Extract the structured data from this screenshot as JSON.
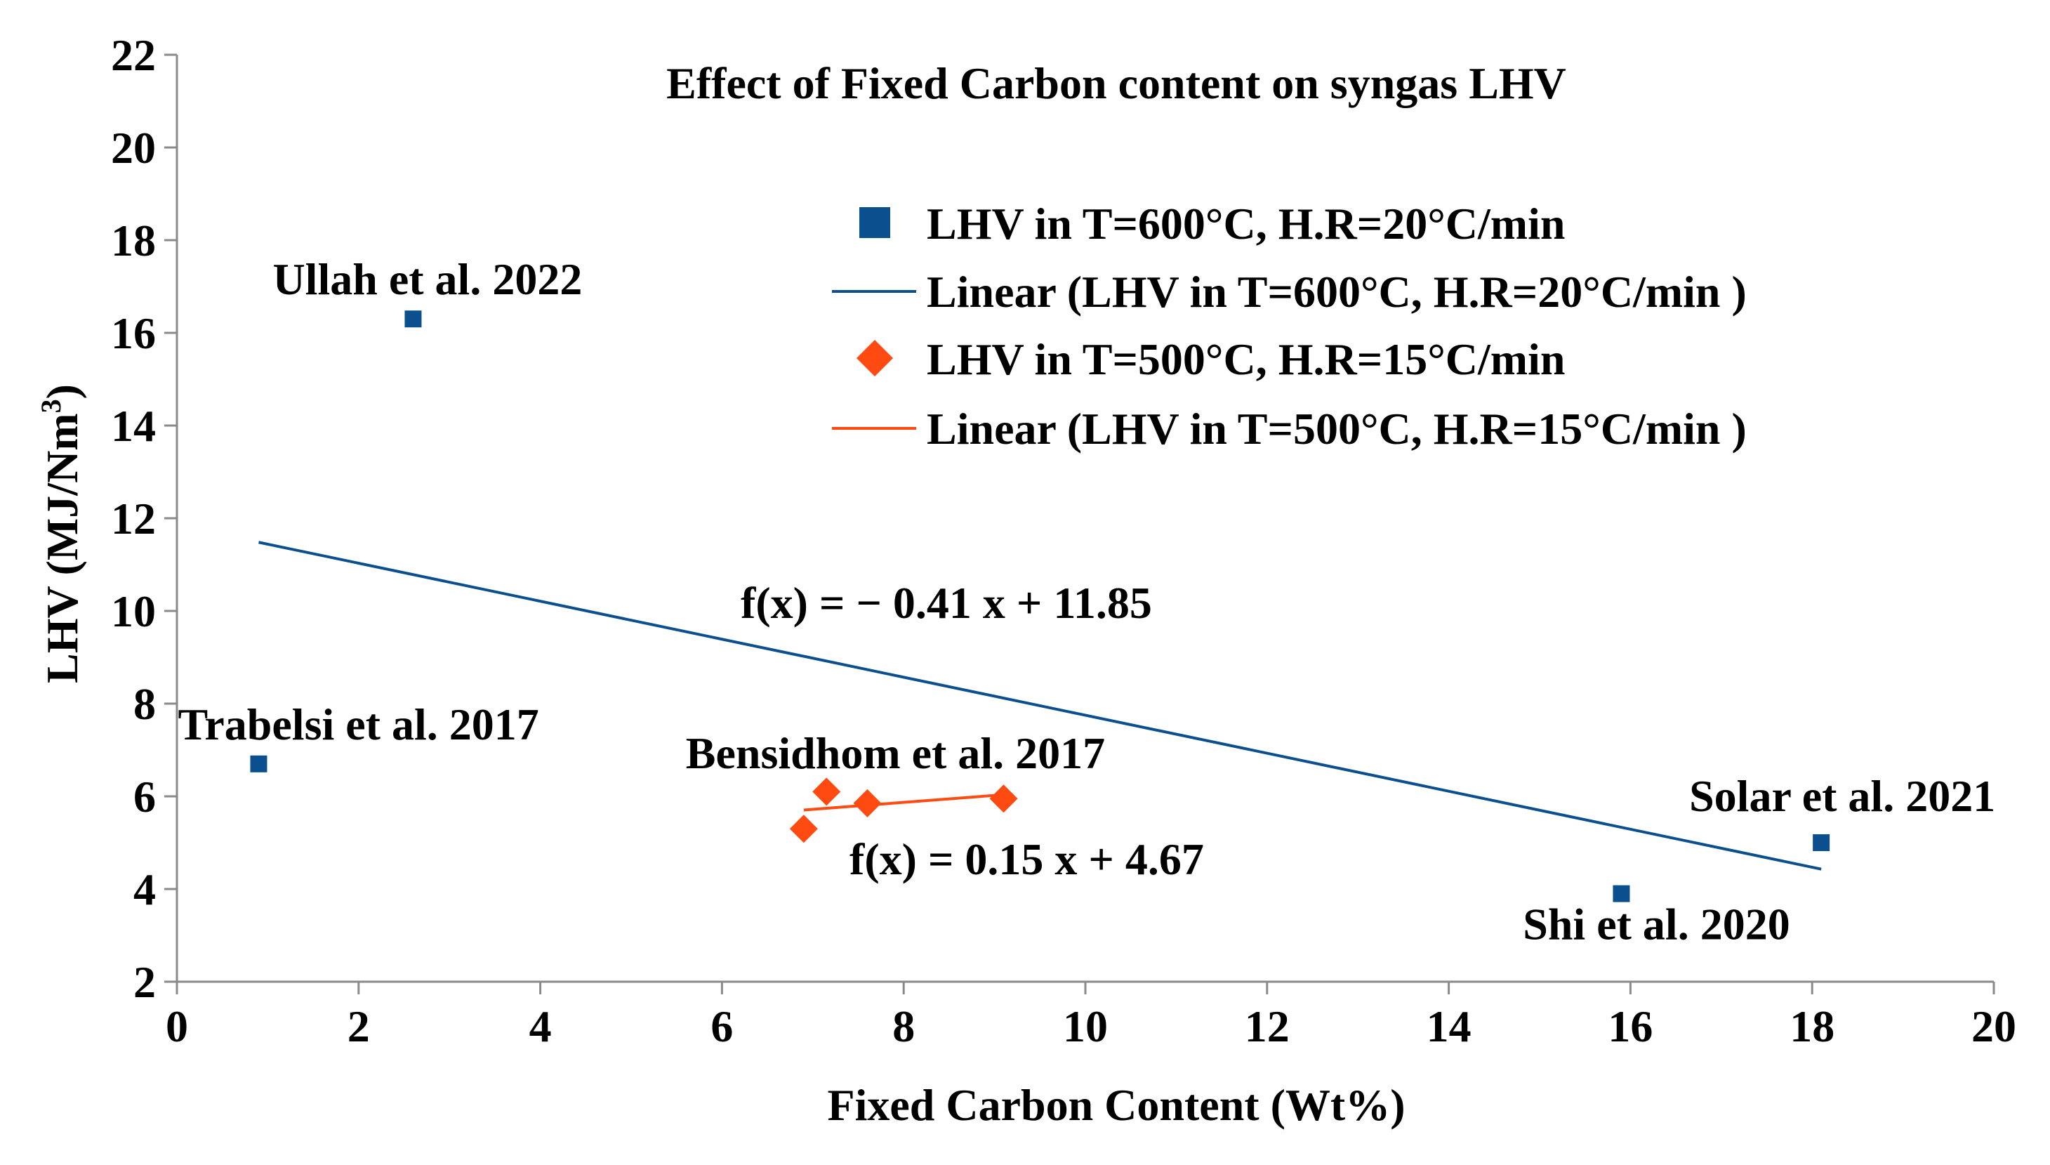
{
  "chart_data": {
    "type": "scatter",
    "title": "Effect of Fixed Carbon content on syngas LHV",
    "xlabel": "Fixed Carbon Content (Wt%)",
    "ylabel_main": "LHV (MJ/Nm",
    "ylabel_sup": "3",
    "ylabel_close": ")",
    "xlim": [
      0,
      20
    ],
    "ylim": [
      2,
      22
    ],
    "xticks": [
      "0",
      "2",
      "4",
      "6",
      "8",
      "10",
      "12",
      "14",
      "16",
      "18",
      "20"
    ],
    "yticks": [
      "2",
      "4",
      "6",
      "8",
      "10",
      "12",
      "14",
      "16",
      "18",
      "20",
      "22"
    ],
    "grid": false,
    "legend_position": "top-right",
    "series": [
      {
        "name": "LHV in T=600°C, H.R=20°C/min",
        "marker": "square",
        "color": "#0b4f8e",
        "x": [
          0.9,
          2.6,
          15.9,
          18.1
        ],
        "y": [
          6.7,
          16.3,
          3.9,
          5.0
        ],
        "trendline": {
          "label": "Linear (LHV in T=600°C, H.R=20°C/min )",
          "slope": -0.41,
          "intercept": 11.85,
          "x_range": [
            0.9,
            18.1
          ],
          "equation": "f(x) = − 0.41 x + 11.85"
        }
      },
      {
        "name": "LHV in T=500°C, H.R=15°C/min",
        "marker": "diamond",
        "color": "#ff4b12",
        "x": [
          6.9,
          7.15,
          7.6,
          9.1
        ],
        "y": [
          5.3,
          6.1,
          5.85,
          5.95
        ],
        "trendline": {
          "label": "Linear (LHV in T=500°C, H.R=15°C/min )",
          "slope": 0.15,
          "intercept": 4.67,
          "x_range": [
            6.9,
            9.1
          ],
          "equation": "f(x) = 0.15 x + 4.67"
        }
      }
    ],
    "annotations": [
      {
        "text": "Ullah et al. 2022",
        "x": 2.6,
        "y": 16.3
      },
      {
        "text": "Trabelsi et al. 2017",
        "x": 0.9,
        "y": 6.7
      },
      {
        "text": "Bensidhom et al. 2017",
        "x": 7.6,
        "y": 5.85
      },
      {
        "text": "Solar et al. 2021",
        "x": 18.1,
        "y": 5.0
      },
      {
        "text": "Shi et al. 2020",
        "x": 15.9,
        "y": 3.9
      }
    ]
  }
}
